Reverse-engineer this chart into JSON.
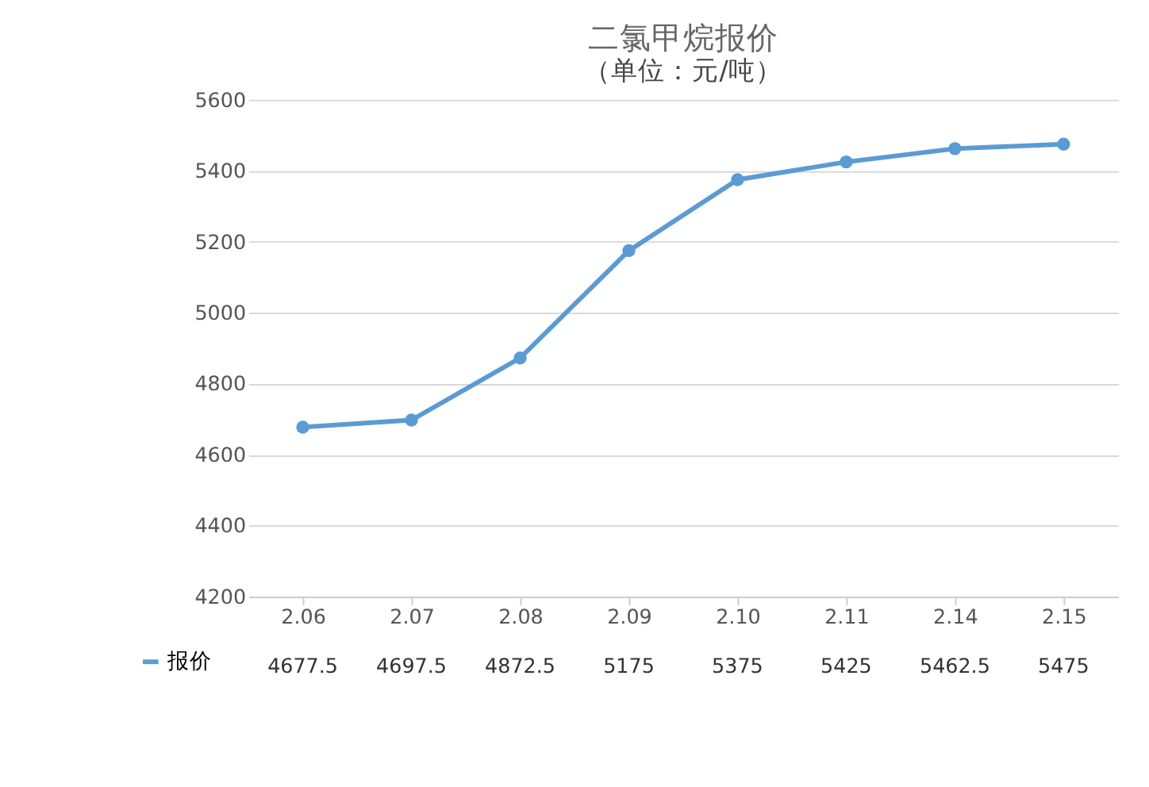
{
  "chart_data": {
    "type": "line",
    "title": "二氯甲烷报价",
    "subtitle": "（单位：元/吨）",
    "categories": [
      "2.06",
      "2.07",
      "2.08",
      "2.09",
      "2.10",
      "2.11",
      "2.14",
      "2.15"
    ],
    "series": [
      {
        "name": "报价",
        "color": "#5b9bd5",
        "values": [
          4677.5,
          4697.5,
          4872.5,
          5175,
          5375,
          5425,
          5462.5,
          5475
        ]
      }
    ],
    "ylim": [
      4200,
      5600
    ],
    "yticks": [
      4200,
      4400,
      4600,
      4800,
      5000,
      5200,
      5400,
      5600
    ],
    "grid": "y",
    "legend": "bottom",
    "marker": "circle",
    "data_labels": true
  }
}
